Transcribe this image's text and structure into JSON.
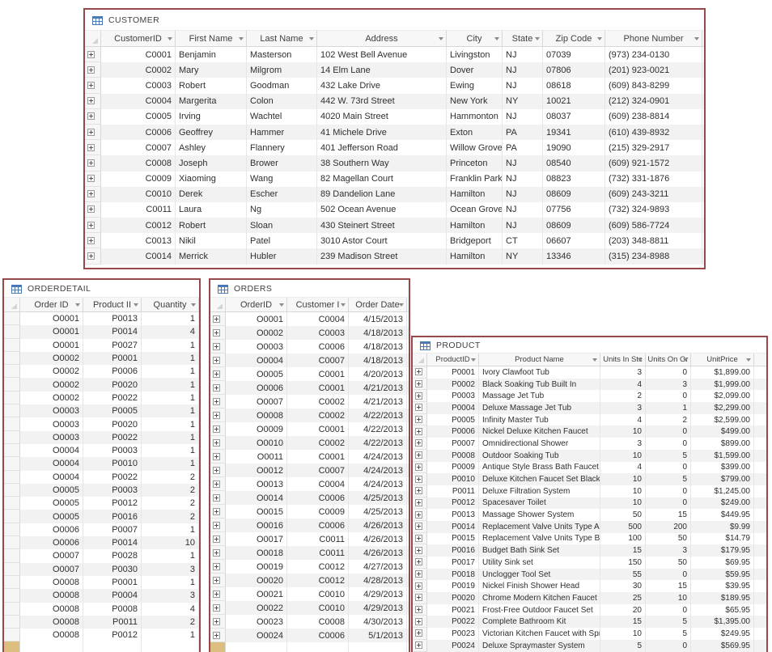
{
  "colors": {
    "window_border": "#96494b",
    "title_text": "#3f3f3f",
    "header_bg": "#f7f7f7",
    "header_border": "#d8d8d8",
    "data_text": "#2f2f2f",
    "alt_row_bg": "#f2f2f2",
    "selector_bg": "#f6f6f6",
    "grid_line": "#e6e6e6",
    "table_icon_blue": "#4a7ab5",
    "new_record_marker": "#dcbe7e"
  },
  "windows": {
    "customer": {
      "title": "CUSTOMER",
      "columns": [
        "CustomerID",
        "First Name",
        "Last Name",
        "Address",
        "City",
        "State",
        "Zip Code",
        "Phone Number"
      ],
      "rows": [
        [
          "C0001",
          "Benjamin",
          "Masterson",
          "102 West Bell Avenue",
          "Livingston",
          "NJ",
          "07039",
          "(973) 234-0130"
        ],
        [
          "C0002",
          "Mary",
          "Milgrom",
          "14 Elm Lane",
          "Dover",
          "NJ",
          "07806",
          "(201) 923-0021"
        ],
        [
          "C0003",
          "Robert",
          "Goodman",
          "432 Lake Drive",
          "Ewing",
          "NJ",
          "08618",
          "(609) 843-8299"
        ],
        [
          "C0004",
          "Margerita",
          "Colon",
          "442 W. 73rd Street",
          "New York",
          "NY",
          "10021",
          "(212) 324-0901"
        ],
        [
          "C0005",
          "Irving",
          "Wachtel",
          "4020 Main Street",
          "Hammonton",
          "NJ",
          "08037",
          "(609) 238-8814"
        ],
        [
          "C0006",
          "Geoffrey",
          "Hammer",
          "41 Michele Drive",
          "Exton",
          "PA",
          "19341",
          "(610) 439-8932"
        ],
        [
          "C0007",
          "Ashley",
          "Flannery",
          "401 Jefferson Road",
          "Willow Grove",
          "PA",
          "19090",
          "(215) 329-2917"
        ],
        [
          "C0008",
          "Joseph",
          "Brower",
          "38 Southern Way",
          "Princeton",
          "NJ",
          "08540",
          "(609) 921-1572"
        ],
        [
          "C0009",
          "Xiaoming",
          "Wang",
          "82 Magellan Court",
          "Franklin Park",
          "NJ",
          "08823",
          "(732) 331-1876"
        ],
        [
          "C0010",
          "Derek",
          "Escher",
          "89 Dandelion Lane",
          "Hamilton",
          "NJ",
          "08609",
          "(609) 243-3211"
        ],
        [
          "C0011",
          "Laura",
          "Ng",
          "502 Ocean Avenue",
          "Ocean Grove",
          "NJ",
          "07756",
          "(732) 324-9893"
        ],
        [
          "C0012",
          "Robert",
          "Sloan",
          "430 Steinert Street",
          "Hamilton",
          "NJ",
          "08609",
          "(609) 586-7724"
        ],
        [
          "C0013",
          "Nikil",
          "Patel",
          "3010 Astor Court",
          "Bridgeport",
          "CT",
          "06607",
          "(203) 348-8811"
        ],
        [
          "C0014",
          "Merrick",
          "Hubler",
          "239 Madison Street",
          "Hamilton",
          "NY",
          "13346",
          "(315) 234-8988"
        ]
      ]
    },
    "orderdetail": {
      "title": "ORDERDETAIL",
      "columns": [
        "Order ID",
        "Product II",
        "Quantity"
      ],
      "rows": [
        [
          "O0001",
          "P0013",
          "1"
        ],
        [
          "O0001",
          "P0014",
          "4"
        ],
        [
          "O0001",
          "P0027",
          "1"
        ],
        [
          "O0002",
          "P0001",
          "1"
        ],
        [
          "O0002",
          "P0006",
          "1"
        ],
        [
          "O0002",
          "P0020",
          "1"
        ],
        [
          "O0002",
          "P0022",
          "1"
        ],
        [
          "O0003",
          "P0005",
          "1"
        ],
        [
          "O0003",
          "P0020",
          "1"
        ],
        [
          "O0003",
          "P0022",
          "1"
        ],
        [
          "O0004",
          "P0003",
          "1"
        ],
        [
          "O0004",
          "P0010",
          "1"
        ],
        [
          "O0004",
          "P0022",
          "2"
        ],
        [
          "O0005",
          "P0003",
          "2"
        ],
        [
          "O0005",
          "P0012",
          "2"
        ],
        [
          "O0005",
          "P0016",
          "2"
        ],
        [
          "O0006",
          "P0007",
          "1"
        ],
        [
          "O0006",
          "P0014",
          "10"
        ],
        [
          "O0007",
          "P0028",
          "1"
        ],
        [
          "O0007",
          "P0030",
          "3"
        ],
        [
          "O0008",
          "P0001",
          "1"
        ],
        [
          "O0008",
          "P0004",
          "3"
        ],
        [
          "O0008",
          "P0008",
          "4"
        ],
        [
          "O0008",
          "P0011",
          "2"
        ],
        [
          "O0008",
          "P0012",
          "1"
        ]
      ]
    },
    "orders": {
      "title": "ORDERS",
      "columns": [
        "OrderID",
        "Customer I",
        "Order Date"
      ],
      "rows": [
        [
          "O0001",
          "C0004",
          "4/15/2013"
        ],
        [
          "O0002",
          "C0003",
          "4/18/2013"
        ],
        [
          "O0003",
          "C0006",
          "4/18/2013"
        ],
        [
          "O0004",
          "C0007",
          "4/18/2013"
        ],
        [
          "O0005",
          "C0001",
          "4/20/2013"
        ],
        [
          "O0006",
          "C0001",
          "4/21/2013"
        ],
        [
          "O0007",
          "C0002",
          "4/21/2013"
        ],
        [
          "O0008",
          "C0002",
          "4/22/2013"
        ],
        [
          "O0009",
          "C0001",
          "4/22/2013"
        ],
        [
          "O0010",
          "C0002",
          "4/22/2013"
        ],
        [
          "O0011",
          "C0001",
          "4/24/2013"
        ],
        [
          "O0012",
          "C0007",
          "4/24/2013"
        ],
        [
          "O0013",
          "C0004",
          "4/24/2013"
        ],
        [
          "O0014",
          "C0006",
          "4/25/2013"
        ],
        [
          "O0015",
          "C0009",
          "4/25/2013"
        ],
        [
          "O0016",
          "C0006",
          "4/26/2013"
        ],
        [
          "O0017",
          "C0011",
          "4/26/2013"
        ],
        [
          "O0018",
          "C0011",
          "4/26/2013"
        ],
        [
          "O0019",
          "C0012",
          "4/27/2013"
        ],
        [
          "O0020",
          "C0012",
          "4/28/2013"
        ],
        [
          "O0021",
          "C0010",
          "4/29/2013"
        ],
        [
          "O0022",
          "C0010",
          "4/29/2013"
        ],
        [
          "O0023",
          "C0008",
          "4/30/2013"
        ],
        [
          "O0024",
          "C0006",
          "5/1/2013"
        ]
      ]
    },
    "product": {
      "title": "PRODUCT",
      "columns": [
        "ProductID",
        "Product Name",
        "Units In Stc",
        "Units On Or",
        "UnitPrice"
      ],
      "rows": [
        [
          "P0001",
          "Ivory Clawfoot Tub",
          "3",
          "0",
          "$1,899.00"
        ],
        [
          "P0002",
          "Black Soaking Tub Built In",
          "4",
          "3",
          "$1,999.00"
        ],
        [
          "P0003",
          "Massage Jet Tub",
          "2",
          "0",
          "$2,099.00"
        ],
        [
          "P0004",
          "Deluxe Massage Jet Tub",
          "3",
          "1",
          "$2,299.00"
        ],
        [
          "P0005",
          "Infinity Master Tub",
          "4",
          "2",
          "$2,599.00"
        ],
        [
          "P0006",
          "Nickel Deluxe Kitchen Faucet",
          "10",
          "0",
          "$499.00"
        ],
        [
          "P0007",
          "Omnidirectional Shower",
          "3",
          "0",
          "$899.00"
        ],
        [
          "P0008",
          "Outdoor Soaking Tub",
          "10",
          "5",
          "$1,599.00"
        ],
        [
          "P0009",
          "Antique Style Brass Bath Faucet S",
          "4",
          "0",
          "$399.00"
        ],
        [
          "P0010",
          "Deluxe Kitchen Faucet Set Black",
          "10",
          "5",
          "$799.00"
        ],
        [
          "P0011",
          "Deluxe Filtration System",
          "10",
          "0",
          "$1,245.00"
        ],
        [
          "P0012",
          "Spacesaver Toilet",
          "10",
          "0",
          "$249.00"
        ],
        [
          "P0013",
          "Massage Shower System",
          "50",
          "15",
          "$449.95"
        ],
        [
          "P0014",
          "Replacement Valve Units Type A",
          "500",
          "200",
          "$9.99"
        ],
        [
          "P0015",
          "Replacement Valve Units Type B",
          "100",
          "50",
          "$14.79"
        ],
        [
          "P0016",
          "Budget Bath Sink Set",
          "15",
          "3",
          "$179.95"
        ],
        [
          "P0017",
          "Utility Sink set",
          "150",
          "50",
          "$69.95"
        ],
        [
          "P0018",
          "Unclogger Tool Set",
          "55",
          "0",
          "$59.95"
        ],
        [
          "P0019",
          "Nickel Finish Shower Head",
          "30",
          "15",
          "$39.95"
        ],
        [
          "P0020",
          "Chrome Modern Kitchen Faucet",
          "25",
          "10",
          "$189.95"
        ],
        [
          "P0021",
          "Frost-Free Outdoor Faucet Set",
          "20",
          "0",
          "$65.95"
        ],
        [
          "P0022",
          "Complete Bathroom Kit",
          "15",
          "5",
          "$1,395.00"
        ],
        [
          "P0023",
          "Victorian Kitchen Faucet with Spr",
          "10",
          "5",
          "$249.95"
        ],
        [
          "P0024",
          "Deluxe Spraymaster System",
          "5",
          "0",
          "$569.95"
        ]
      ]
    }
  }
}
